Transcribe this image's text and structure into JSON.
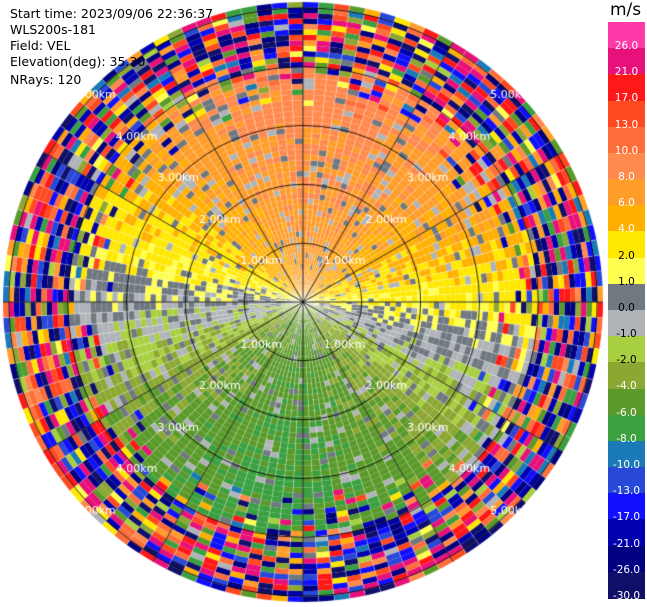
{
  "header": {
    "start_time": "Start time: 2023/09/06 22:36:37",
    "instrument": "WLS200s-181",
    "field": "Field: VEL",
    "elevation": "Elevation(deg): 35.30",
    "nrays": "NRays: 120"
  },
  "colorbar": {
    "unit": "m/s",
    "ticks": [
      "26.0",
      "21.0",
      "17.0",
      "13.0",
      "10.0",
      "8.0",
      "6.0",
      "4.0",
      "2.0",
      "1.0",
      "0.0",
      "-1.0",
      "-2.0",
      "-4.0",
      "-6.0",
      "-8.0",
      "-10.0",
      "-13.0",
      "-17.0",
      "-21.0",
      "-26.0",
      "-30.0"
    ],
    "colors": [
      "#ff3aa8",
      "#e8107a",
      "#ff1818",
      "#ff4a20",
      "#ff6e3a",
      "#ff8a4e",
      "#ff9d2a",
      "#ffb000",
      "#ffe800",
      "#ffff50",
      "#707880",
      "#b0b4b8",
      "#a8d040",
      "#8ca832",
      "#5a9a2a",
      "#3aa040",
      "#1a7ab8",
      "#2848d8",
      "#1010ff",
      "#0000b0",
      "#000080",
      "#10106a"
    ]
  },
  "chart_data": {
    "type": "heatmap",
    "title": "",
    "field": "VEL",
    "units": "m/s",
    "projection": "polar PPI",
    "nrays": 120,
    "range_rings_km": [
      1.0,
      2.0,
      3.0,
      4.0,
      5.0
    ],
    "range_ring_labels": [
      "1.00km",
      "2.00km",
      "3.00km",
      "4.00km",
      "5.00km"
    ],
    "vmin": -30.0,
    "vmax": 26.0,
    "azimuth_spokes_deg": [
      0,
      30,
      60,
      90,
      120,
      150,
      180,
      210,
      240,
      270,
      300,
      330
    ],
    "approx_velocity_by_sector": [
      {
        "azimuth": "north (330-30 deg)",
        "velocity_ms": 8.0
      },
      {
        "azimuth": "east (60-120 deg)",
        "velocity_ms": 2.0
      },
      {
        "azimuth": "south (150-210 deg)",
        "velocity_ms": -6.0
      },
      {
        "azimuth": "west (240-300 deg)",
        "velocity_ms": -2.0
      }
    ]
  }
}
